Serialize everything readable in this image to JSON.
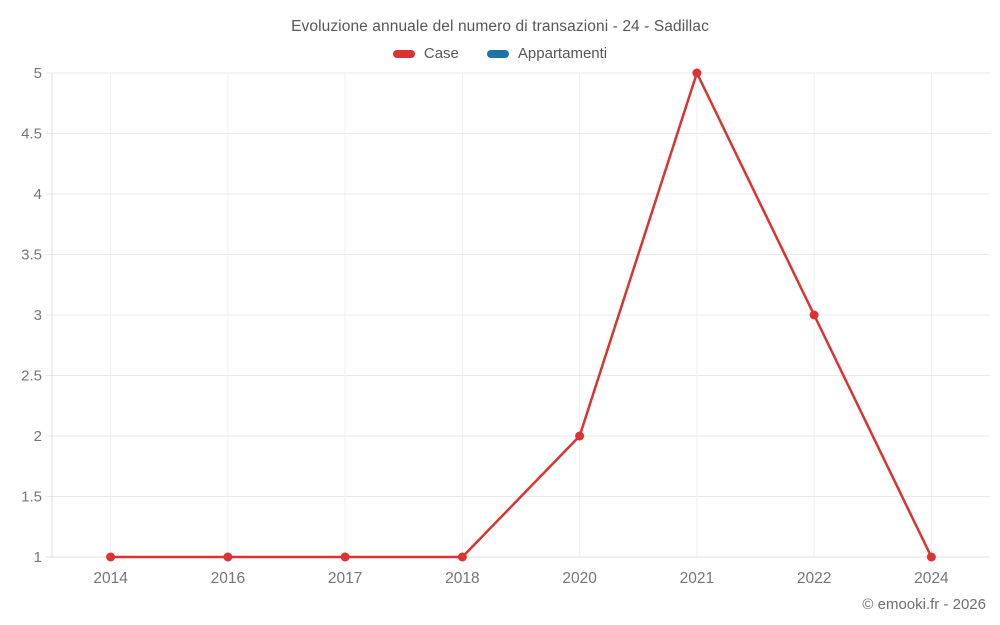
{
  "title": "Evoluzione annuale del numero di transazioni - 24 - Sadillac",
  "legend": [
    {
      "label": "Case",
      "color": "#db3232"
    },
    {
      "label": "Appartamenti",
      "color": "#1b74a6"
    }
  ],
  "copyright": "© emooki.fr - 2026",
  "colors": {
    "background": "#ffffff",
    "title_text": "#575757",
    "tick_labels": "#757575",
    "grid_line": "#e9e9e9",
    "axis_line": "#e0e0e0",
    "case_red": "#db3232",
    "appartamenti_blue": "#1b74a6"
  },
  "chart_data": {
    "type": "line",
    "title": "Evoluzione annuale del numero di transazioni - 24 - Sadillac",
    "categories": [
      "2014",
      "2016",
      "2017",
      "2018",
      "2020",
      "2021",
      "2022",
      "2024"
    ],
    "series": [
      {
        "name": "Case",
        "color": "#db3232",
        "values": [
          1,
          1,
          1,
          1,
          2,
          5,
          3,
          1
        ]
      },
      {
        "name": "Appartamenti",
        "color": "#1b74a6",
        "values": []
      }
    ],
    "xlabel": "",
    "ylabel": "",
    "ylim": [
      1,
      5
    ],
    "yticks": [
      1,
      1.5,
      2,
      2.5,
      3,
      3.5,
      4,
      4.5,
      5
    ],
    "grid": true,
    "legend_position": "top",
    "point_markers": true
  }
}
